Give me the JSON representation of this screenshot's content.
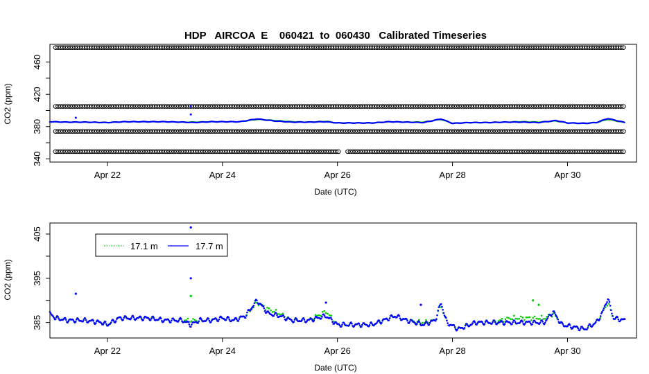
{
  "title": "HDP   AIRCOA  E    060421  to  060430   Calibrated Timeseries",
  "colors": {
    "series_17_1": "#00cc00",
    "series_17_7": "#0000ff",
    "reference": "#000000"
  },
  "chart_data": [
    {
      "type": "scatter",
      "xlabel": "Date (UTC)",
      "ylabel": "CO2 (ppm)",
      "xlim": [
        21.0,
        31.2
      ],
      "ylim": [
        336,
        482
      ],
      "x_ticks": [
        {
          "value": 22,
          "label": "Apr 22"
        },
        {
          "value": 24,
          "label": "Apr 24"
        },
        {
          "value": 26,
          "label": "Apr 26"
        },
        {
          "value": 28,
          "label": "Apr 28"
        },
        {
          "value": 30,
          "label": "Apr 30"
        }
      ],
      "y_ticks": [
        340,
        380,
        420,
        460
      ],
      "y_ticks_extra": [
        360,
        400,
        440
      ],
      "reference_levels": [
        478,
        405,
        374,
        349
      ],
      "reference_x_range": [
        21.1,
        31.0
      ],
      "series": [
        {
          "name": "17.7 m",
          "x": [
            21.0,
            21.3,
            21.6,
            22.0,
            22.3,
            22.6,
            23.0,
            23.3,
            23.5,
            23.8,
            24.0,
            24.3,
            24.6,
            24.9,
            25.2,
            25.5,
            25.8,
            26.0,
            26.3,
            26.6,
            26.9,
            27.2,
            27.5,
            27.8,
            28.0,
            28.3,
            28.6,
            28.9,
            29.2,
            29.5,
            29.8,
            30.0,
            30.3,
            30.5,
            30.7,
            31.0
          ],
          "y": [
            386,
            385.5,
            385.5,
            385,
            386,
            386,
            386,
            385.5,
            385,
            386,
            386,
            386,
            389.5,
            387,
            385.5,
            385.5,
            386,
            384.5,
            384.5,
            384.5,
            386,
            385.5,
            385,
            389.5,
            384,
            385,
            385,
            385.5,
            385.5,
            385,
            387.5,
            384.5,
            384,
            385,
            390,
            385
          ]
        },
        {
          "name": "17.1 m",
          "x": [
            21.0,
            21.3,
            21.6,
            22.0,
            22.3,
            22.6,
            23.0,
            23.3,
            23.5,
            23.8,
            24.0,
            24.3,
            24.6,
            24.9,
            25.2,
            25.5,
            25.8,
            26.0,
            26.3,
            26.6,
            26.9,
            27.2,
            27.5,
            27.8,
            28.0,
            28.3,
            28.6,
            28.9,
            29.2,
            29.5,
            29.8,
            30.0,
            30.3,
            30.5,
            30.7,
            31.0
          ],
          "y": [
            386,
            385.5,
            385.5,
            385,
            386,
            386,
            386,
            385.5,
            385.5,
            386,
            386,
            386,
            389,
            387.5,
            386,
            385.5,
            386.5,
            384.5,
            384.5,
            384.5,
            386,
            385.5,
            385.5,
            389,
            384,
            385,
            385,
            385.5,
            386,
            385.5,
            387,
            384.5,
            384,
            385,
            389,
            385
          ]
        }
      ],
      "spikes": [
        {
          "x": 21.45,
          "y": 391
        },
        {
          "x": 23.45,
          "y": 405
        },
        {
          "x": 23.45,
          "y": 395
        }
      ]
    },
    {
      "type": "scatter",
      "xlabel": "Date (UTC)",
      "ylabel": "CO2 (ppm)",
      "xlim": [
        21.0,
        31.2
      ],
      "ylim": [
        381.5,
        407.5
      ],
      "x_ticks": [
        {
          "value": 22,
          "label": "Apr 22"
        },
        {
          "value": 24,
          "label": "Apr 24"
        },
        {
          "value": 26,
          "label": "Apr 26"
        },
        {
          "value": 28,
          "label": "Apr 28"
        },
        {
          "value": 30,
          "label": "Apr 30"
        }
      ],
      "y_ticks": [
        385,
        395,
        405
      ],
      "y_ticks_extra": [
        390,
        400
      ],
      "legend": {
        "position": "top-left",
        "entries": [
          {
            "label": "17.1 m",
            "color": "#00cc00",
            "style": "dotted"
          },
          {
            "label": "17.7 m",
            "color": "#0000ff",
            "style": "solid"
          }
        ]
      },
      "series": [
        {
          "name": "17.7 m",
          "x": [
            21.0,
            21.1,
            21.3,
            21.6,
            21.9,
            22.0,
            22.2,
            22.4,
            22.7,
            23.0,
            23.3,
            23.45,
            23.6,
            23.8,
            24.0,
            24.2,
            24.4,
            24.6,
            24.8,
            25.0,
            25.2,
            25.5,
            25.8,
            26.0,
            26.3,
            26.6,
            26.9,
            27.0,
            27.2,
            27.5,
            27.7,
            27.8,
            27.9,
            28.1,
            28.4,
            28.7,
            29.0,
            29.3,
            29.6,
            29.75,
            29.9,
            30.1,
            30.3,
            30.5,
            30.6,
            30.7,
            30.8,
            31.0
          ],
          "y": [
            387,
            386,
            385.5,
            385.5,
            385,
            384.5,
            386,
            386,
            386,
            385.5,
            385.5,
            384.5,
            385.5,
            385.5,
            386,
            385.5,
            386.5,
            390,
            387,
            386.5,
            385.5,
            385.5,
            386.5,
            384.5,
            384.5,
            384.5,
            386,
            386.5,
            385.5,
            384.5,
            385.5,
            389.5,
            385,
            383.5,
            385,
            385,
            385,
            385,
            385,
            387.5,
            384.5,
            384,
            383.5,
            385,
            387,
            390.5,
            386,
            385.5
          ]
        },
        {
          "name": "17.1 m",
          "x": [
            21.0,
            21.1,
            21.3,
            21.6,
            21.9,
            22.0,
            22.2,
            22.4,
            22.7,
            23.0,
            23.3,
            23.45,
            23.6,
            23.8,
            24.0,
            24.2,
            24.4,
            24.6,
            24.8,
            25.0,
            25.2,
            25.5,
            25.8,
            26.0,
            26.3,
            26.6,
            26.9,
            27.0,
            27.2,
            27.5,
            27.7,
            27.8,
            27.9,
            28.1,
            28.4,
            28.7,
            29.0,
            29.3,
            29.6,
            29.75,
            29.9,
            30.1,
            30.3,
            30.5,
            30.6,
            30.7,
            30.8,
            31.0
          ],
          "y": [
            387,
            386,
            385.5,
            385.5,
            385,
            384.5,
            386,
            386,
            386,
            385.5,
            385.5,
            385.5,
            385.5,
            385.5,
            386,
            385.5,
            386.5,
            389.5,
            388,
            387,
            385.5,
            385.5,
            387.5,
            384.5,
            384.5,
            384.5,
            386,
            386.5,
            385.5,
            385,
            385.5,
            389,
            385,
            383.5,
            385,
            385,
            386,
            386,
            386,
            387,
            384.5,
            384,
            383.5,
            385,
            387,
            389.5,
            386,
            385.5
          ]
        }
      ],
      "spikes": [
        {
          "x": 21.45,
          "y": 391.5,
          "series": "17.7 m"
        },
        {
          "x": 23.45,
          "y": 406.5,
          "series": "17.7 m"
        },
        {
          "x": 23.45,
          "y": 395,
          "series": "17.7 m"
        },
        {
          "x": 23.45,
          "y": 391,
          "series": "17.1 m"
        },
        {
          "x": 25.8,
          "y": 389.5,
          "series": "17.7 m"
        },
        {
          "x": 27.45,
          "y": 389,
          "series": "17.7 m"
        },
        {
          "x": 29.4,
          "y": 390,
          "series": "17.1 m"
        },
        {
          "x": 29.5,
          "y": 389,
          "series": "17.1 m"
        }
      ]
    }
  ]
}
